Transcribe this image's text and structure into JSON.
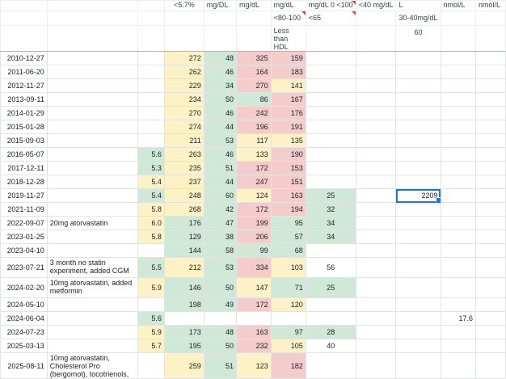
{
  "header": {
    "row1": [
      "",
      "",
      "",
      "<5.7%",
      "mg/DL",
      "mg/dL",
      "mg/dL",
      "mg/dL\n0 <100",
      "<40 mg/dL",
      "L",
      "nmol/L",
      "nmol/L"
    ],
    "row2": [
      "",
      "",
      "",
      "",
      "",
      "",
      "<80-100",
      "<65",
      "",
      "30-40mg/dL",
      "",
      ""
    ],
    "row3": [
      "",
      "",
      "",
      "",
      "",
      "",
      "Less than HDL",
      "",
      "",
      "60",
      "",
      ""
    ]
  },
  "rows": [
    {
      "date": "2010-12-27",
      "note": "",
      "a1c": "",
      "tc": "272",
      "hdl": "48",
      "tg": "325",
      "ldl": "159",
      "h": "",
      "i": "",
      "j": "",
      "k": ""
    },
    {
      "date": "2011-06-20",
      "note": "",
      "a1c": "",
      "tc": "262",
      "hdl": "46",
      "tg": "164",
      "ldl": "183",
      "h": "",
      "i": "",
      "j": "",
      "k": ""
    },
    {
      "date": "2012-11-27",
      "note": "",
      "a1c": "",
      "tc": "229",
      "hdl": "34",
      "tg": "270",
      "ldl": "141",
      "h": "",
      "i": "",
      "j": "",
      "k": ""
    },
    {
      "date": "2013-09-11",
      "note": "",
      "a1c": "",
      "tc": "234",
      "hdl": "50",
      "tg": "86",
      "ldl": "167",
      "h": "",
      "i": "",
      "j": "",
      "k": ""
    },
    {
      "date": "2014-01-29",
      "note": "",
      "a1c": "",
      "tc": "270",
      "hdl": "46",
      "tg": "242",
      "ldl": "176",
      "h": "",
      "i": "",
      "j": "",
      "k": ""
    },
    {
      "date": "2015-01-28",
      "note": "",
      "a1c": "",
      "tc": "274",
      "hdl": "44",
      "tg": "196",
      "ldl": "191",
      "h": "",
      "i": "",
      "j": "",
      "k": ""
    },
    {
      "date": "2015-09-03",
      "note": "",
      "a1c": "",
      "tc": "211",
      "hdl": "53",
      "tg": "117",
      "ldl": "135",
      "h": "",
      "i": "",
      "j": "",
      "k": ""
    },
    {
      "date": "2016-05-07",
      "note": "",
      "a1c": "5.6",
      "tc": "263",
      "hdl": "46",
      "tg": "133",
      "ldl": "190",
      "h": "",
      "i": "",
      "j": "",
      "k": ""
    },
    {
      "date": "2017-12-11",
      "note": "",
      "a1c": "5.3",
      "tc": "235",
      "hdl": "51",
      "tg": "172",
      "ldl": "153",
      "h": "",
      "i": "",
      "j": "",
      "k": ""
    },
    {
      "date": "2018-12-28",
      "note": "",
      "a1c": "5.4",
      "tc": "237",
      "hdl": "44",
      "tg": "247",
      "ldl": "151",
      "h": "",
      "i": "",
      "j": "",
      "k": ""
    },
    {
      "date": "2019-11-27",
      "note": "",
      "a1c": "5.4",
      "tc": "248",
      "hdl": "60",
      "tg": "124",
      "ldl": "163",
      "h": "25",
      "i": "",
      "j": "2209",
      "k": ""
    },
    {
      "date": "2021-11-09",
      "note": "",
      "a1c": "5.8",
      "tc": "268",
      "hdl": "42",
      "tg": "172",
      "ldl": "194",
      "h": "32",
      "i": "",
      "j": "",
      "k": ""
    },
    {
      "date": "2022-09-07",
      "note": "20mg atorvastatin",
      "a1c": "6.0",
      "tc": "176",
      "hdl": "47",
      "tg": "199",
      "ldl": "95",
      "h": "34",
      "i": "",
      "j": "",
      "k": ""
    },
    {
      "date": "2023-01-25",
      "note": "",
      "a1c": "5.8",
      "tc": "129",
      "hdl": "38",
      "tg": "206",
      "ldl": "57",
      "h": "34",
      "i": "",
      "j": "",
      "k": ""
    },
    {
      "date": "2023-04-10",
      "note": "",
      "a1c": "",
      "tc": "144",
      "hdl": "58",
      "tg": "99",
      "ldl": "68",
      "h": "",
      "i": "",
      "j": "",
      "k": ""
    },
    {
      "date": "2023-07-21",
      "note": "3 month no statin experiment, added CGM",
      "a1c": "5.5",
      "tc": "212",
      "hdl": "53",
      "tg": "334",
      "ldl": "103",
      "h": "56",
      "i": "",
      "j": "",
      "k": ""
    },
    {
      "date": "2024-02-20",
      "note": "10mg atorvastatin, added metformin",
      "a1c": "5.9",
      "tc": "146",
      "hdl": "50",
      "tg": "147",
      "ldl": "71",
      "h": "25",
      "i": "",
      "j": "",
      "k": ""
    },
    {
      "date": "2024-05-10",
      "note": "",
      "a1c": "",
      "tc": "198",
      "hdl": "49",
      "tg": "172",
      "ldl": "120",
      "h": "",
      "i": "",
      "j": "",
      "k": ""
    },
    {
      "date": "2024-06-04",
      "note": "",
      "a1c": "5.6",
      "tc": "",
      "hdl": "",
      "tg": "",
      "ldl": "",
      "h": "",
      "i": "",
      "j": "",
      "k": "17.6"
    },
    {
      "date": "2024-07-23",
      "note": "",
      "a1c": "5.9",
      "tc": "173",
      "hdl": "48",
      "tg": "163",
      "ldl": "97",
      "h": "28",
      "i": "",
      "j": "",
      "k": ""
    },
    {
      "date": "2025-03-13",
      "note": "",
      "a1c": "5.7",
      "tc": "195",
      "hdl": "50",
      "tg": "232",
      "ldl": "105",
      "h": "40",
      "i": "",
      "j": "",
      "k": ""
    },
    {
      "date": "2025-08-11",
      "note": "10mg atorvastatin, Cholesterol Pro (bergomot), tocotrienols,",
      "a1c": "",
      "tc": "259",
      "hdl": "51",
      "tg": "123",
      "ldl": "182",
      "h": "",
      "i": "",
      "j": "",
      "k": ""
    }
  ],
  "colors": {
    "green": "#cfe8d7",
    "yellow": "#fdf2c6",
    "red": "#f4cccc",
    "selection": "#1a73e8",
    "note_marker": "#e8453c",
    "gridline": "#e2e3e3"
  },
  "selected_cell": {
    "row": 10,
    "col": "j",
    "value": "2209"
  }
}
